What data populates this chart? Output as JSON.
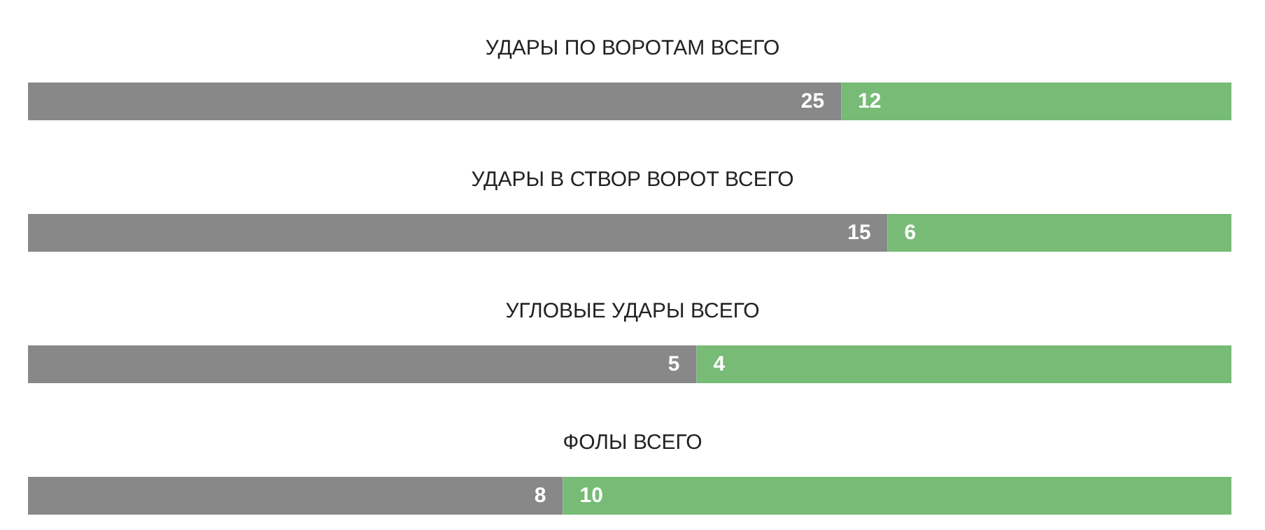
{
  "chart_data": [
    {
      "type": "bar",
      "title": "УДАРЫ ПО ВОРОТАМ ВСЕГО",
      "orientation": "horizontal",
      "stacked": true,
      "data_labels": true,
      "categories": [
        null
      ],
      "xlim": [
        0,
        37
      ],
      "series": [
        {
          "color": "#888888",
          "values": [
            25
          ]
        },
        {
          "color": "#77bb77",
          "values": [
            12
          ]
        }
      ]
    },
    {
      "type": "bar",
      "title": "УДАРЫ В СТВОР ВОРОТ ВСЕГО",
      "orientation": "horizontal",
      "stacked": true,
      "data_labels": true,
      "categories": [
        null
      ],
      "xlim": [
        0,
        21
      ],
      "series": [
        {
          "color": "#888888",
          "values": [
            15
          ]
        },
        {
          "color": "#77bb77",
          "values": [
            6
          ]
        }
      ]
    },
    {
      "type": "bar",
      "title": "УГЛОВЫЕ УДАРЫ ВСЕГО",
      "orientation": "horizontal",
      "stacked": true,
      "data_labels": true,
      "categories": [
        null
      ],
      "xlim": [
        0,
        9
      ],
      "series": [
        {
          "color": "#888888",
          "values": [
            5
          ]
        },
        {
          "color": "#77bb77",
          "values": [
            4
          ]
        }
      ]
    },
    {
      "type": "bar",
      "title": "ФОЛЫ ВСЕГО",
      "orientation": "horizontal",
      "stacked": true,
      "data_labels": true,
      "categories": [
        null
      ],
      "xlim": [
        0,
        18
      ],
      "series": [
        {
          "color": "#888888",
          "values": [
            8
          ]
        },
        {
          "color": "#77bb77",
          "values": [
            10
          ]
        }
      ]
    }
  ]
}
